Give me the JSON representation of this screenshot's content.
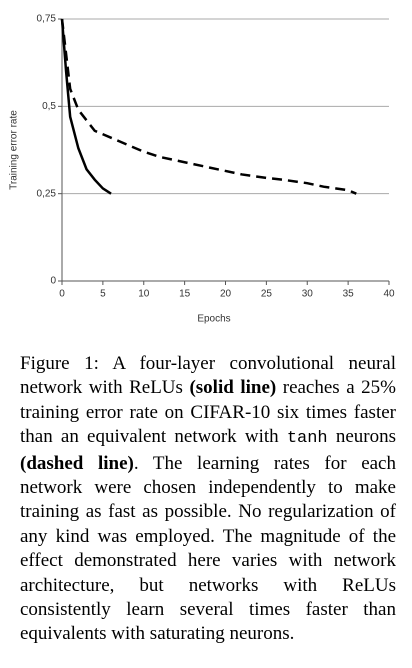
{
  "chart_data": {
    "type": "line",
    "ylabel": "Training error rate",
    "xlabel": "Epochs",
    "xlim": [
      0,
      40
    ],
    "xticks": [
      0,
      5,
      10,
      15,
      20,
      25,
      30,
      35,
      40
    ],
    "ylim": [
      0,
      0.75
    ],
    "yticks": [
      0,
      {
        "value": 0.25,
        "label": "0,25"
      },
      {
        "value": 0.5,
        "label": "0,5"
      },
      {
        "value": 0.75,
        "label": "0,75"
      }
    ],
    "grid": true,
    "series": [
      {
        "color": "#000000",
        "dash": "solid",
        "x": [
          0,
          0.5,
          1,
          2,
          3,
          4,
          5,
          6
        ],
        "values": [
          0.75,
          0.6,
          0.47,
          0.38,
          0.32,
          0.29,
          0.265,
          0.25
        ]
      },
      {
        "color": "#000000",
        "dash": "dashed",
        "x": [
          0,
          1,
          2,
          3,
          4,
          5,
          7,
          10,
          12,
          15,
          18,
          20,
          22,
          25,
          27,
          30,
          32,
          35,
          36
        ],
        "values": [
          0.75,
          0.55,
          0.49,
          0.46,
          0.43,
          0.42,
          0.4,
          0.37,
          0.355,
          0.34,
          0.325,
          0.315,
          0.305,
          0.295,
          0.29,
          0.28,
          0.27,
          0.26,
          0.25
        ]
      }
    ]
  },
  "caption": [
    {
      "style": "plain",
      "text": "Figure 1:  A four-layer convolutional neural network with ReLUs "
    },
    {
      "style": "bold",
      "text": "(solid line)"
    },
    {
      "style": "plain",
      "text": " reaches a 25% training error rate on CIFAR-10 six times faster than an equivalent network with "
    },
    {
      "style": "mono",
      "text": "tanh"
    },
    {
      "style": "plain",
      "text": " neurons "
    },
    {
      "style": "bold",
      "text": "(dashed line)"
    },
    {
      "style": "plain",
      "text": ". The learning rates for each network were chosen independently to make training as fast as possible.  No regularization of any kind was employed. The magnitude of the effect demonstrated here varies with network architecture, but networks with ReLUs consistently learn several times faster than equivalents with saturating neurons."
    }
  ]
}
